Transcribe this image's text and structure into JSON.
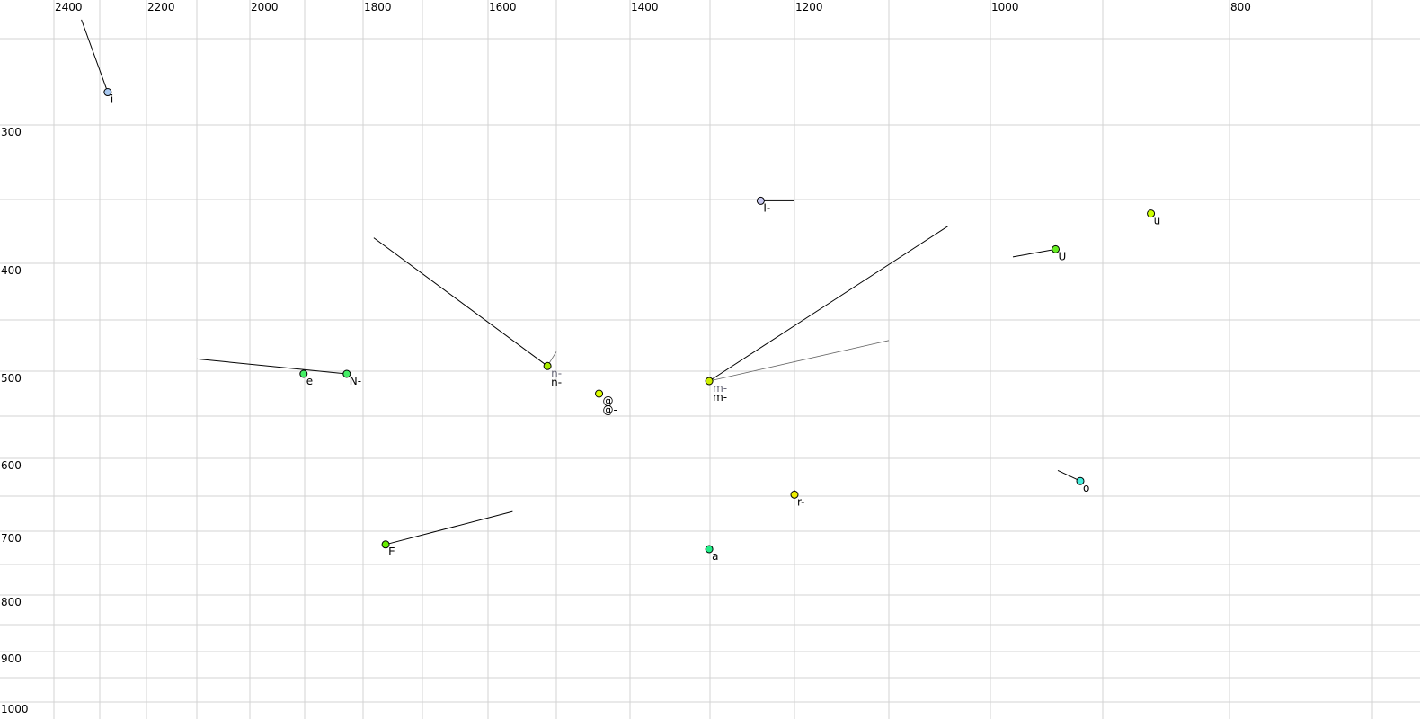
{
  "chart_data": {
    "type": "scatter",
    "title": "",
    "xlabel": "",
    "ylabel": "",
    "x_axis": {
      "quantity": "F2",
      "reversed": true,
      "scale": "nonlinear",
      "range": [
        2400,
        700
      ],
      "tick_labels": [
        2400,
        2200,
        2000,
        1800,
        1600,
        1400,
        1200,
        1000,
        800
      ],
      "gridlines": [
        2400,
        2300,
        2200,
        2100,
        2000,
        1900,
        1800,
        1700,
        1600,
        1500,
        1400,
        1300,
        1200,
        1100,
        1000,
        900,
        800,
        700
      ]
    },
    "y_axis": {
      "quantity": "F1",
      "reversed": true,
      "scale": "nonlinear",
      "range": [
        250,
        1000
      ],
      "tick_labels": [
        300,
        400,
        500,
        600,
        700,
        800,
        900,
        1000
      ],
      "gridlines": [
        250,
        300,
        350,
        400,
        450,
        500,
        550,
        600,
        650,
        700,
        750,
        800,
        850,
        900,
        950,
        1000
      ]
    },
    "grid": true,
    "grid_color": "#d3d3d3",
    "points": [
      {
        "label": "i",
        "f2": 2283,
        "f1": 281,
        "color": "#a8c8f0",
        "trail": [
          [
            2340,
            239
          ]
        ]
      },
      {
        "label": "I-",
        "f2": 1240,
        "f1": 351,
        "color": "#c8c8f0",
        "trail": [
          [
            1200,
            351
          ]
        ]
      },
      {
        "label": "u",
        "f2": 862,
        "f1": 361,
        "color": "#ccff00",
        "trail": []
      },
      {
        "label": "U",
        "f2": 942,
        "f1": 389,
        "color": "#66ee22",
        "trail": [
          [
            980,
            395
          ]
        ]
      },
      {
        "label": "e",
        "f2": 1902,
        "f1": 503,
        "color": "#44ee66",
        "trail": []
      },
      {
        "label": "N-",
        "f2": 1828,
        "f1": 503,
        "color": "#44ee66",
        "trail": [
          [
            2100,
            488
          ]
        ]
      },
      {
        "label": "n-",
        "f2": 1513,
        "f1": 495,
        "color": "#aaee00",
        "trail": [
          [
            1782,
            380
          ]
        ],
        "gray_label": "n-",
        "gray_trail": [
          [
            1500,
            481
          ]
        ]
      },
      {
        "label": "@-",
        "f2": 1442,
        "f1": 525,
        "color": "#ddff00",
        "trail": [],
        "gray_label": "@"
      },
      {
        "label": "m-",
        "f2": 1301,
        "f1": 511,
        "color": "#ccee00",
        "trail": [
          [
            1042,
            371
          ]
        ],
        "gray_label": "m-",
        "gray_trail": [
          [
            1100,
            470
          ]
        ]
      },
      {
        "label": "E",
        "f2": 1762,
        "f1": 720,
        "color": "#66ee00",
        "trail": [
          [
            1564,
            672
          ]
        ]
      },
      {
        "label": "a",
        "f2": 1301,
        "f1": 727,
        "color": "#22ee88",
        "trail": []
      },
      {
        "label": "r-",
        "f2": 1200,
        "f1": 648,
        "color": "#eeee00",
        "trail": [
          [
            1200,
            642
          ]
        ]
      },
      {
        "label": "o",
        "f2": 920,
        "f1": 630,
        "color": "#44eedd",
        "trail": [
          [
            940,
            616
          ]
        ]
      }
    ]
  }
}
